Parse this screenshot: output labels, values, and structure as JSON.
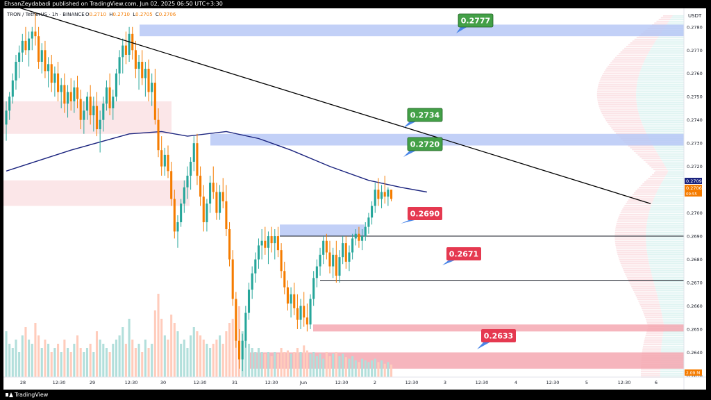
{
  "header": {
    "publish_line": "EhsanZeydabadi published on TradingView.com, Jun 02, 2025 06:50 UTC+3:30"
  },
  "legend": {
    "symbol": "TRON / TetherUS · 1h · BINANCE",
    "ohlc_prefix": "O",
    "open": "0.2710",
    "h_prefix": "H",
    "high": "0.2710",
    "l_prefix": "L",
    "low": "0.2705",
    "c_prefix": "C",
    "close": "0.2706"
  },
  "footer": {
    "brand": "TradingView"
  },
  "colors": {
    "up": "#26a69a",
    "down": "#f57c00",
    "vol_up": "#b2dfdb",
    "vol_down": "#ffccbc",
    "ma": "#1a237e",
    "trendline": "#000000",
    "zone_blue": "#b3c4f5",
    "zone_red": "#f4a3ad",
    "zone_pink": "#fbe3e6",
    "label_green": "#43a047",
    "label_red": "#e53950"
  },
  "chart_data": {
    "type": "candlestick",
    "y_axis_title": "USDT",
    "ylim": [
      0.2624,
      0.2788
    ],
    "y_ticks": [
      "0.2780",
      "0.2770",
      "0.2760",
      "0.2750",
      "0.2740",
      "0.2730",
      "0.2720",
      "0.2700",
      "0.2690",
      "0.2680",
      "0.2670",
      "0.2660",
      "0.2650",
      "0.2640",
      "0.2630"
    ],
    "x_ticks": [
      "28",
      "12:30",
      "29",
      "12:30",
      "30",
      "12:30",
      "31",
      "12:30",
      "Jun",
      "12:30",
      "2",
      "12:30",
      "3",
      "12:30",
      "4",
      "12:30",
      "5",
      "12:30",
      "6"
    ],
    "current_price": {
      "ma_value": "0.2709",
      "price": "0.2706",
      "countdown": "09:55"
    },
    "volume_readout": "2.09 M",
    "levels": [
      {
        "label": "0.2777",
        "value": 0.2777,
        "kind": "resistance"
      },
      {
        "label": "0.2734",
        "value": 0.2734,
        "kind": "resistance"
      },
      {
        "label": "0.2720",
        "value": 0.272,
        "kind": "resistance"
      },
      {
        "label": "0.2690",
        "value": 0.269,
        "kind": "support"
      },
      {
        "label": "0.2671",
        "value": 0.2671,
        "kind": "support"
      },
      {
        "label": "0.2633",
        "value": 0.2633,
        "kind": "support"
      }
    ],
    "zones": [
      {
        "kind": "blue",
        "low": 0.2776,
        "high": 0.2781
      },
      {
        "kind": "blue",
        "low": 0.2729,
        "high": 0.2734
      },
      {
        "kind": "blue",
        "low": 0.269,
        "high": 0.2695
      },
      {
        "kind": "pink",
        "low": 0.2734,
        "high": 0.2748
      },
      {
        "kind": "pink",
        "low": 0.2703,
        "high": 0.2714
      },
      {
        "kind": "red",
        "low": 0.2649,
        "high": 0.2652
      },
      {
        "kind": "red",
        "low": 0.2633,
        "high": 0.264
      }
    ],
    "trendline": {
      "from": [
        0,
        0.279
      ],
      "to": [
        197,
        0.2704
      ]
    },
    "moving_average": [
      [
        0,
        0.2718
      ],
      [
        20,
        0.2727
      ],
      [
        38,
        0.2734
      ],
      [
        48,
        0.2735
      ],
      [
        56,
        0.2733
      ],
      [
        68,
        0.2735
      ],
      [
        78,
        0.2732
      ],
      [
        88,
        0.2727
      ],
      [
        100,
        0.272
      ],
      [
        112,
        0.2714
      ],
      [
        122,
        0.2711
      ],
      [
        130,
        0.2709
      ]
    ],
    "candles": [
      [
        0.2738,
        0.2748,
        0.2731,
        0.2744
      ],
      [
        0.2744,
        0.2752,
        0.274,
        0.275
      ],
      [
        0.275,
        0.276,
        0.2747,
        0.2757
      ],
      [
        0.2757,
        0.2768,
        0.2753,
        0.2765
      ],
      [
        0.2765,
        0.2772,
        0.2758,
        0.2769
      ],
      [
        0.2769,
        0.2777,
        0.2765,
        0.2774
      ],
      [
        0.2774,
        0.278,
        0.2768,
        0.277
      ],
      [
        0.277,
        0.2778,
        0.2763,
        0.2775
      ],
      [
        0.2775,
        0.278,
        0.277,
        0.2778
      ],
      [
        0.2778,
        0.2786,
        0.2772,
        0.2776
      ],
      [
        0.2776,
        0.278,
        0.2762,
        0.2765
      ],
      [
        0.2765,
        0.2773,
        0.276,
        0.277
      ],
      [
        0.277,
        0.2774,
        0.2758,
        0.2761
      ],
      [
        0.2761,
        0.2767,
        0.2754,
        0.2764
      ],
      [
        0.2764,
        0.2768,
        0.2752,
        0.2756
      ],
      [
        0.2756,
        0.2763,
        0.275,
        0.276
      ],
      [
        0.276,
        0.2765,
        0.2748,
        0.2752
      ],
      [
        0.2752,
        0.2758,
        0.2745,
        0.2755
      ],
      [
        0.2755,
        0.276,
        0.2743,
        0.2747
      ],
      [
        0.2747,
        0.2755,
        0.2741,
        0.2752
      ],
      [
        0.2752,
        0.2758,
        0.2744,
        0.2748
      ],
      [
        0.2748,
        0.2757,
        0.2743,
        0.2754
      ],
      [
        0.2754,
        0.2759,
        0.2745,
        0.2749
      ],
      [
        0.2749,
        0.2753,
        0.2736,
        0.274
      ],
      [
        0.274,
        0.2748,
        0.2734,
        0.2744
      ],
      [
        0.2744,
        0.2752,
        0.274,
        0.275
      ],
      [
        0.275,
        0.2755,
        0.2738,
        0.2742
      ],
      [
        0.2742,
        0.275,
        0.2735,
        0.2746
      ],
      [
        0.2746,
        0.2752,
        0.2733,
        0.2736
      ],
      [
        0.2736,
        0.2744,
        0.2726,
        0.274
      ],
      [
        0.274,
        0.275,
        0.2735,
        0.2747
      ],
      [
        0.2747,
        0.2757,
        0.2744,
        0.2754
      ],
      [
        0.2754,
        0.276,
        0.2742,
        0.2745
      ],
      [
        0.2745,
        0.2753,
        0.274,
        0.275
      ],
      [
        0.275,
        0.2762,
        0.2748,
        0.276
      ],
      [
        0.276,
        0.277,
        0.2755,
        0.2767
      ],
      [
        0.2767,
        0.2775,
        0.276,
        0.2772
      ],
      [
        0.2772,
        0.2778,
        0.2764,
        0.2768
      ],
      [
        0.2768,
        0.278,
        0.2765,
        0.2777
      ],
      [
        0.2777,
        0.278,
        0.2766,
        0.277
      ],
      [
        0.277,
        0.2774,
        0.2758,
        0.2762
      ],
      [
        0.2762,
        0.2768,
        0.2753,
        0.2765
      ],
      [
        0.2765,
        0.277,
        0.2755,
        0.2758
      ],
      [
        0.2758,
        0.2765,
        0.275,
        0.2762
      ],
      [
        0.2762,
        0.2766,
        0.2748,
        0.2752
      ],
      [
        0.2752,
        0.276,
        0.2746,
        0.2756
      ],
      [
        0.2756,
        0.2762,
        0.2738,
        0.274
      ],
      [
        0.274,
        0.2745,
        0.2724,
        0.2727
      ],
      [
        0.2727,
        0.2733,
        0.2716,
        0.272
      ],
      [
        0.272,
        0.2728,
        0.2716,
        0.2725
      ],
      [
        0.2725,
        0.2729,
        0.2715,
        0.2718
      ],
      [
        0.2718,
        0.2722,
        0.2703,
        0.2706
      ],
      [
        0.2706,
        0.271,
        0.2689,
        0.2692
      ],
      [
        0.2692,
        0.2699,
        0.2685,
        0.2696
      ],
      [
        0.2696,
        0.2706,
        0.2694,
        0.2704
      ],
      [
        0.2704,
        0.2714,
        0.27,
        0.2711
      ],
      [
        0.2711,
        0.272,
        0.2706,
        0.2716
      ],
      [
        0.2716,
        0.2724,
        0.271,
        0.2722
      ],
      [
        0.2722,
        0.2733,
        0.2718,
        0.273
      ],
      [
        0.273,
        0.2734,
        0.2712,
        0.2716
      ],
      [
        0.2716,
        0.272,
        0.2703,
        0.2707
      ],
      [
        0.2707,
        0.2712,
        0.2692,
        0.2696
      ],
      [
        0.2696,
        0.2706,
        0.2692,
        0.2704
      ],
      [
        0.2704,
        0.2716,
        0.27,
        0.2713
      ],
      [
        0.2713,
        0.272,
        0.2706,
        0.2709
      ],
      [
        0.2709,
        0.2713,
        0.2697,
        0.27
      ],
      [
        0.27,
        0.2712,
        0.2697,
        0.2709
      ],
      [
        0.2709,
        0.2715,
        0.2702,
        0.2705
      ],
      [
        0.2705,
        0.2712,
        0.269,
        0.2693
      ],
      [
        0.2693,
        0.2696,
        0.2677,
        0.268
      ],
      [
        0.268,
        0.2684,
        0.266,
        0.2663
      ],
      [
        0.2663,
        0.2666,
        0.2642,
        0.2645
      ],
      [
        0.2645,
        0.265,
        0.2633,
        0.2637
      ],
      [
        0.2637,
        0.2648,
        0.2632,
        0.2645
      ],
      [
        0.2645,
        0.266,
        0.2642,
        0.2657
      ],
      [
        0.2657,
        0.267,
        0.2654,
        0.2667
      ],
      [
        0.2667,
        0.2677,
        0.2663,
        0.2674
      ],
      [
        0.2674,
        0.2683,
        0.267,
        0.268
      ],
      [
        0.268,
        0.2689,
        0.2676,
        0.2686
      ],
      [
        0.2686,
        0.2693,
        0.268,
        0.2688
      ],
      [
        0.2688,
        0.2694,
        0.2682,
        0.2685
      ],
      [
        0.2685,
        0.2692,
        0.2678,
        0.269
      ],
      [
        0.269,
        0.2694,
        0.2683,
        0.2687
      ],
      [
        0.2687,
        0.2693,
        0.268,
        0.269
      ],
      [
        0.269,
        0.2694,
        0.2681,
        0.2684
      ],
      [
        0.2684,
        0.2687,
        0.2672,
        0.2675
      ],
      [
        0.2675,
        0.2679,
        0.2665,
        0.2668
      ],
      [
        0.2668,
        0.2671,
        0.2658,
        0.2661
      ],
      [
        0.2661,
        0.2668,
        0.2655,
        0.2665
      ],
      [
        0.2665,
        0.267,
        0.2656,
        0.2659
      ],
      [
        0.2659,
        0.2665,
        0.265,
        0.2654
      ],
      [
        0.2654,
        0.2663,
        0.265,
        0.266
      ],
      [
        0.266,
        0.2666,
        0.2651,
        0.2655
      ],
      [
        0.2655,
        0.2661,
        0.2649,
        0.2652
      ],
      [
        0.2652,
        0.2665,
        0.265,
        0.2663
      ],
      [
        0.2663,
        0.2675,
        0.266,
        0.2672
      ],
      [
        0.2672,
        0.268,
        0.2668,
        0.2677
      ],
      [
        0.2677,
        0.2685,
        0.2673,
        0.2682
      ],
      [
        0.2682,
        0.269,
        0.2678,
        0.2688
      ],
      [
        0.2688,
        0.2691,
        0.268,
        0.2683
      ],
      [
        0.2683,
        0.2688,
        0.2674,
        0.2677
      ],
      [
        0.2677,
        0.2685,
        0.2672,
        0.2682
      ],
      [
        0.2682,
        0.2688,
        0.267,
        0.2673
      ],
      [
        0.2673,
        0.2684,
        0.267,
        0.2681
      ],
      [
        0.2681,
        0.269,
        0.2678,
        0.2687
      ],
      [
        0.2687,
        0.269,
        0.2676,
        0.2679
      ],
      [
        0.2679,
        0.2686,
        0.2675,
        0.2683
      ],
      [
        0.2683,
        0.2691,
        0.268,
        0.2689
      ],
      [
        0.2689,
        0.2693,
        0.2686,
        0.2691
      ],
      [
        0.2691,
        0.2694,
        0.2685,
        0.2688
      ],
      [
        0.2688,
        0.2693,
        0.2684,
        0.269
      ],
      [
        0.269,
        0.2696,
        0.2688,
        0.2694
      ],
      [
        0.2694,
        0.27,
        0.2691,
        0.2698
      ],
      [
        0.2698,
        0.2705,
        0.2695,
        0.2703
      ],
      [
        0.2703,
        0.2713,
        0.27,
        0.271
      ],
      [
        0.271,
        0.2715,
        0.2703,
        0.2706
      ],
      [
        0.2706,
        0.2712,
        0.2702,
        0.2709
      ],
      [
        0.2709,
        0.2716,
        0.2704,
        0.2707
      ],
      [
        0.2707,
        0.2711,
        0.2703,
        0.271
      ],
      [
        0.271,
        0.271,
        0.2705,
        0.2706
      ]
    ],
    "volumes": [
      0.55,
      0.4,
      0.35,
      0.45,
      0.3,
      0.5,
      0.6,
      0.45,
      0.4,
      0.65,
      0.5,
      0.35,
      0.45,
      0.4,
      0.3,
      0.35,
      0.4,
      0.3,
      0.45,
      0.35,
      0.3,
      0.4,
      0.5,
      0.35,
      0.3,
      0.35,
      0.4,
      0.3,
      0.55,
      0.45,
      0.4,
      0.35,
      0.3,
      0.4,
      0.45,
      0.5,
      0.6,
      0.4,
      0.7,
      0.45,
      0.35,
      0.4,
      0.3,
      0.45,
      0.35,
      0.4,
      0.8,
      1.0,
      0.7,
      0.5,
      0.45,
      0.75,
      0.65,
      0.55,
      0.4,
      0.45,
      0.35,
      0.5,
      0.6,
      0.55,
      0.5,
      0.45,
      0.4,
      0.35,
      0.4,
      0.45,
      0.5,
      0.4,
      0.55,
      0.65,
      0.7,
      0.9,
      0.85,
      0.55,
      0.45,
      0.4,
      0.35,
      0.3,
      0.35,
      0.3,
      0.28,
      0.3,
      0.25,
      0.3,
      0.28,
      0.35,
      0.3,
      0.32,
      0.28,
      0.3,
      0.35,
      0.3,
      0.38,
      0.32,
      0.28,
      0.3,
      0.25,
      0.28,
      0.22,
      0.3,
      0.25,
      0.28,
      0.3,
      0.25,
      0.28,
      0.24,
      0.22,
      0.25,
      0.2,
      0.18,
      0.22,
      0.2,
      0.18,
      0.2,
      0.22,
      0.18,
      0.2,
      0.16,
      0.18,
      0.15
    ],
    "volume_profile_note": ""
  }
}
